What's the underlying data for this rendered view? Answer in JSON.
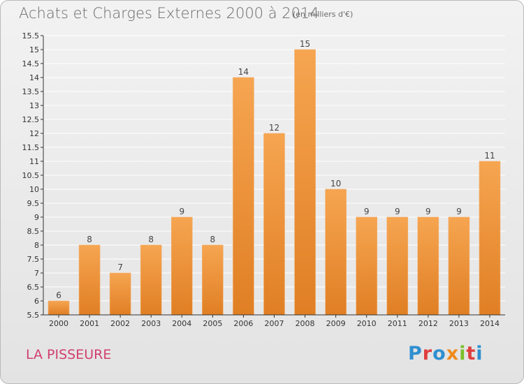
{
  "header": {
    "title": "Achats et Charges Externes 2000 à 2014",
    "subtitle": "(en milliers d'€)"
  },
  "footer": {
    "commune": "LA PISSEURE",
    "logo_text": "Proxiti",
    "logo_colors": [
      "#2f8fd0",
      "#e03f3f",
      "#2f8fd0",
      "#f08a1c",
      "#7cbf2a",
      "#e03f3f",
      "#2f8fd0"
    ]
  },
  "colors": {
    "bar_light": "#f6a551",
    "bar_dark": "#e07f24",
    "grid": "#ffffff",
    "axis": "#333333"
  },
  "chart_data": {
    "type": "bar",
    "title": "Achats et Charges Externes 2000 à 2014",
    "subtitle": "(en milliers d'€)",
    "categories": [
      "2000",
      "2001",
      "2002",
      "2003",
      "2004",
      "2005",
      "2006",
      "2007",
      "2008",
      "2009",
      "2010",
      "2011",
      "2012",
      "2013",
      "2014"
    ],
    "values": [
      6,
      8,
      7,
      8,
      9,
      8,
      14,
      12,
      15,
      10,
      9,
      9,
      9,
      9,
      11
    ],
    "value_labels": [
      "6",
      "8",
      "7",
      "8",
      "9",
      "8",
      "14",
      "12",
      "15",
      "10",
      "9",
      "9",
      "9",
      "9",
      "11"
    ],
    "ylim": [
      5.5,
      15.5
    ],
    "yticks": [
      "5.5",
      "6",
      "6.5",
      "7",
      "7.5",
      "8",
      "8.5",
      "9",
      "9.5",
      "10",
      "10.5",
      "11",
      "11.5",
      "12",
      "12.5",
      "13",
      "13.5",
      "14",
      "14.5",
      "15",
      "15.5"
    ],
    "grid": true,
    "legend": "none"
  }
}
